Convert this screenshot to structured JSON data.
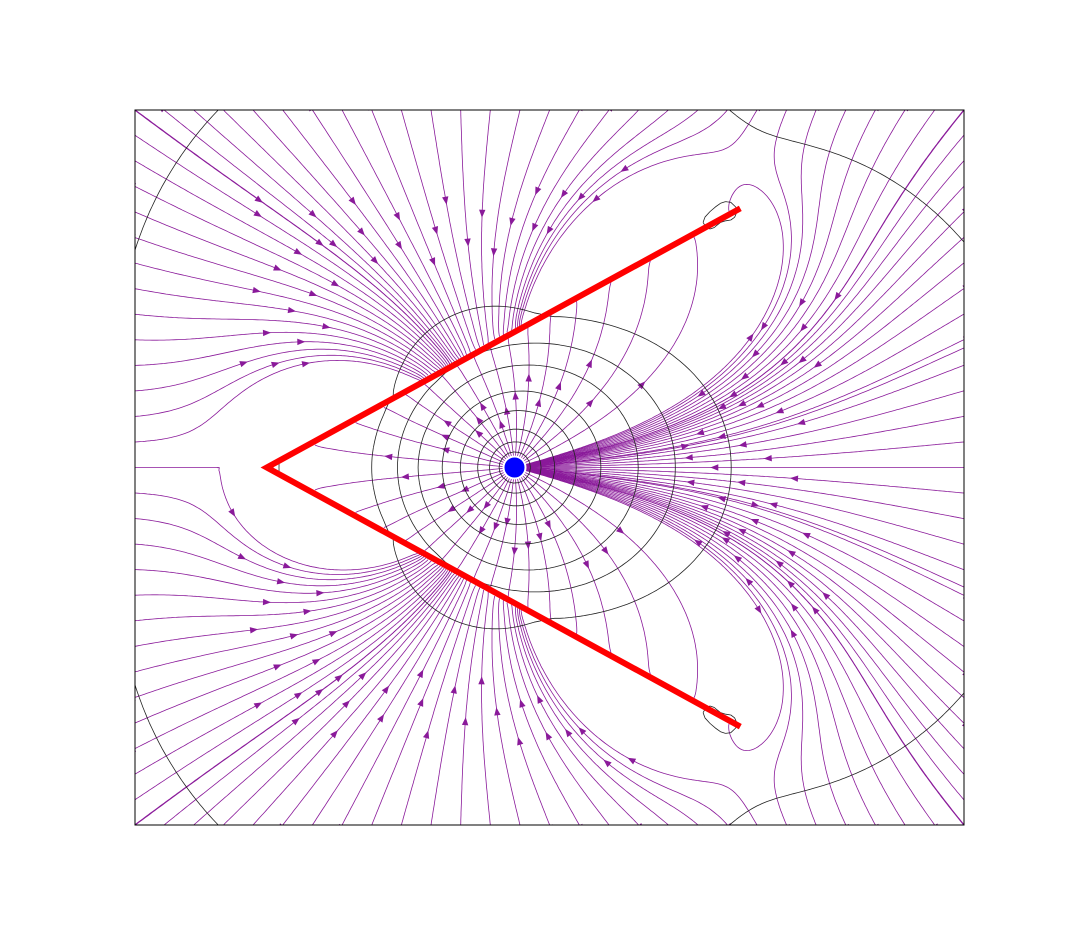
{
  "figure": {
    "kind": "electric field lines and equipotentials of a point charge near a bent conductor",
    "colors": {
      "field_line": "#8a1a9a",
      "arrow": "#8a1a9a",
      "equipotential": "#222222",
      "conductor": "#ff0000",
      "point_charge": "#0000ff",
      "frame": "#000000",
      "background": "#ffffff"
    },
    "point_charge": {
      "label": "",
      "x": 0,
      "y": 0
    },
    "conductor": {
      "shape": "chevron",
      "vertices": [
        [
          1.13,
          1.29
        ],
        [
          -1.24,
          0
        ],
        [
          1.13,
          -1.29
        ]
      ]
    },
    "domain": {
      "xlim": [
        -1.9,
        2.25
      ],
      "ylim": [
        -1.78,
        1.78
      ]
    },
    "equipotential_levels": [
      -1.3,
      -0.9,
      -0.6,
      -0.4,
      -0.2,
      0.2,
      0.4,
      0.6,
      0.9,
      1.2,
      1.6,
      2.0,
      2.5,
      3.0,
      3.5,
      4.0,
      4.6,
      5.2,
      6.0
    ],
    "axes": {
      "visible_ticks": false,
      "title": ""
    }
  }
}
